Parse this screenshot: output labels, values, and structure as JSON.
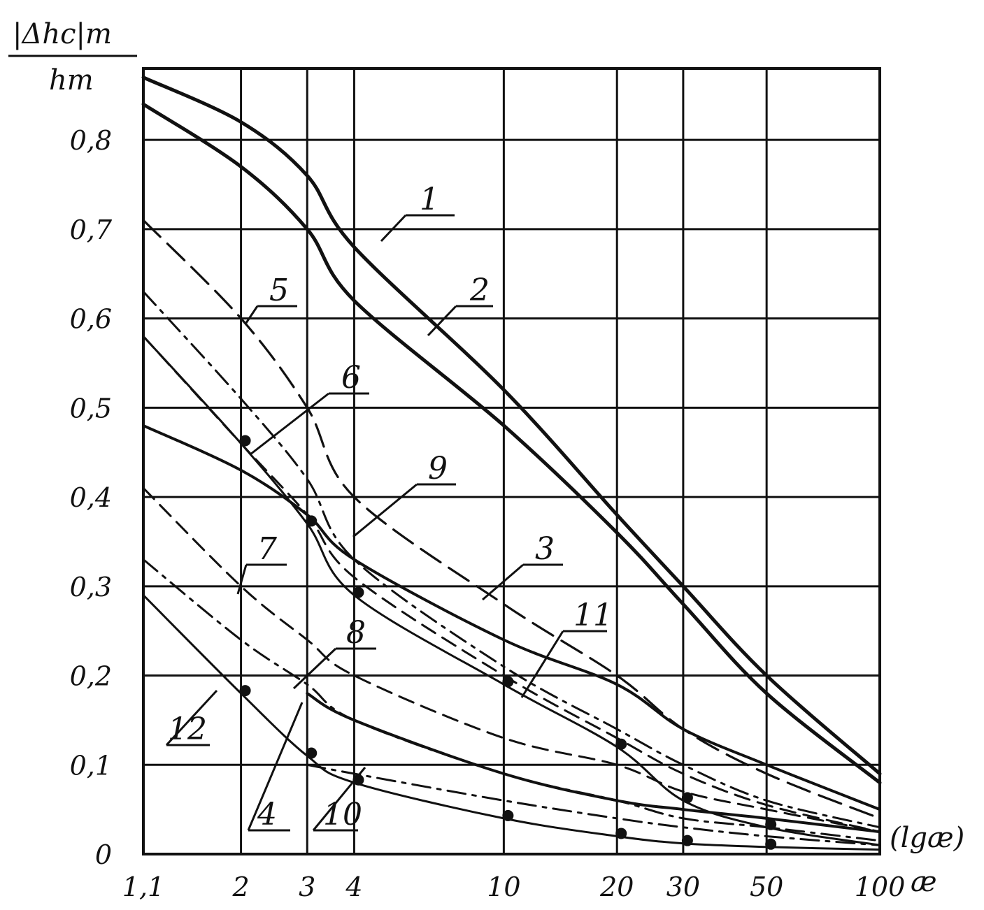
{
  "chart_data": {
    "type": "line",
    "title": "",
    "ylabel_top": "|Δhc|m",
    "ylabel_bottom": "hm",
    "xlabel": "æ",
    "xlabel_scale_note": "(lgæ)",
    "x_scale": "log",
    "xlim": [
      1.1,
      100
    ],
    "ylim": [
      0,
      0.88
    ],
    "grid": true,
    "x_ticks": [
      {
        "value": 1.1,
        "label": "1,1"
      },
      {
        "value": 2,
        "label": "2"
      },
      {
        "value": 3,
        "label": "3"
      },
      {
        "value": 4,
        "label": "4"
      },
      {
        "value": 10,
        "label": "10"
      },
      {
        "value": 20,
        "label": "20"
      },
      {
        "value": 30,
        "label": "30"
      },
      {
        "value": 50,
        "label": "50"
      },
      {
        "value": 100,
        "label": "100"
      }
    ],
    "y_ticks": [
      {
        "value": 0,
        "label": "0"
      },
      {
        "value": 0.1,
        "label": "0,1"
      },
      {
        "value": 0.2,
        "label": "0,2"
      },
      {
        "value": 0.3,
        "label": "0,3"
      },
      {
        "value": 0.4,
        "label": "0,4"
      },
      {
        "value": 0.5,
        "label": "0,5"
      },
      {
        "value": 0.6,
        "label": "0,6"
      },
      {
        "value": 0.7,
        "label": "0,7"
      },
      {
        "value": 0.8,
        "label": "0,8"
      }
    ],
    "series": [
      {
        "name": "1",
        "style": "solid-thick",
        "x": [
          1.1,
          2,
          3,
          4,
          10,
          20,
          30,
          50,
          100
        ],
        "y": [
          0.87,
          0.82,
          0.76,
          0.68,
          0.52,
          0.38,
          0.3,
          0.2,
          0.09
        ]
      },
      {
        "name": "2",
        "style": "solid-thick",
        "x": [
          1.1,
          2,
          3,
          4,
          10,
          20,
          30,
          50,
          100
        ],
        "y": [
          0.84,
          0.77,
          0.7,
          0.62,
          0.48,
          0.36,
          0.28,
          0.18,
          0.08
        ]
      },
      {
        "name": "3",
        "style": "solid",
        "x": [
          1.1,
          2,
          3,
          4,
          10,
          20,
          30,
          50,
          100
        ],
        "y": [
          0.48,
          0.43,
          0.38,
          0.33,
          0.24,
          0.19,
          0.14,
          0.1,
          0.05
        ]
      },
      {
        "name": "4",
        "style": "solid",
        "x": [
          3,
          4,
          10,
          20,
          30,
          50,
          100
        ],
        "y": [
          0.18,
          0.15,
          0.09,
          0.06,
          0.05,
          0.04,
          0.025
        ]
      },
      {
        "name": "5",
        "style": "dashed-long",
        "x": [
          1.1,
          2,
          3,
          4,
          10,
          20,
          30,
          50,
          100
        ],
        "y": [
          0.71,
          0.6,
          0.5,
          0.4,
          0.28,
          0.2,
          0.14,
          0.09,
          0.04
        ]
      },
      {
        "name": "6",
        "style": "dash-dot",
        "x": [
          1.1,
          2,
          3,
          4,
          10,
          20,
          30,
          50,
          100
        ],
        "y": [
          0.63,
          0.51,
          0.42,
          0.33,
          0.21,
          0.14,
          0.1,
          0.06,
          0.03
        ]
      },
      {
        "name": "7",
        "style": "dashed",
        "x": [
          1.1,
          2,
          3,
          4,
          10,
          20,
          30,
          50,
          100
        ],
        "y": [
          0.41,
          0.3,
          0.24,
          0.2,
          0.13,
          0.1,
          0.07,
          0.05,
          0.025
        ]
      },
      {
        "name": "8",
        "style": "dash-dot",
        "x": [
          1.1,
          2,
          3,
          4,
          10,
          20,
          30,
          50,
          100
        ],
        "y": [
          0.33,
          0.24,
          0.19,
          0.15,
          0.09,
          0.06,
          0.04,
          0.03,
          0.015
        ]
      },
      {
        "name": "9",
        "style": "dashed",
        "x": [
          1.1,
          2,
          3,
          4,
          10,
          20,
          30,
          50,
          100
        ],
        "y": [
          0.58,
          0.46,
          0.38,
          0.31,
          0.2,
          0.13,
          0.09,
          0.055,
          0.025
        ]
      },
      {
        "name": "10",
        "style": "dash-dot",
        "x": [
          3,
          4,
          10,
          20,
          30,
          50,
          100
        ],
        "y": [
          0.1,
          0.09,
          0.06,
          0.04,
          0.03,
          0.02,
          0.01
        ]
      },
      {
        "name": "11",
        "style": "solid-dots",
        "x": [
          1.1,
          2,
          3,
          4,
          10,
          20,
          30,
          50,
          100
        ],
        "y": [
          0.58,
          0.46,
          0.37,
          0.29,
          0.19,
          0.12,
          0.06,
          0.03,
          0.01
        ]
      },
      {
        "name": "12",
        "style": "solid-dots",
        "x": [
          1.1,
          2,
          3,
          4,
          10,
          20,
          30,
          50,
          100
        ],
        "y": [
          0.29,
          0.18,
          0.11,
          0.08,
          0.04,
          0.02,
          0.012,
          0.008,
          0.005
        ]
      }
    ]
  }
}
